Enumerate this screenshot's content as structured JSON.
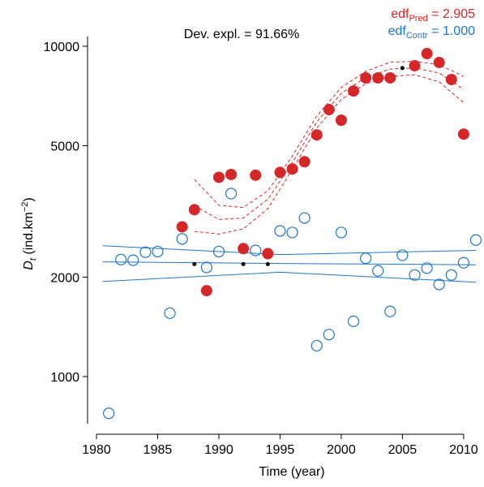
{
  "chart_data": {
    "type": "scatter",
    "log_y": true,
    "title": "Dev. expl. = 91.66%",
    "xlabel": "Time (year)",
    "ylabel": [
      "D",
      "t",
      " (ind.km",
      "−2",
      ")"
    ],
    "edf": [
      {
        "parts": [
          "edf",
          "Pred",
          " = 2.905"
        ],
        "color": "#d62728"
      },
      {
        "parts": [
          "edf",
          "Contr",
          " = 1.000"
        ],
        "color": "#1f77c4"
      }
    ],
    "xlim": [
      1980,
      2011.2
    ],
    "ylim": [
      720,
      10700
    ],
    "xticks": [
      1980,
      1985,
      1990,
      1995,
      2000,
      2005,
      2010
    ],
    "yticks": [
      1000,
      2000,
      5000,
      10000
    ],
    "series": [
      {
        "style": "line",
        "color": "#1f77c4",
        "x": [
          1980.5,
          1995,
          2011
        ],
        "values": [
          2225,
          2200,
          2180
        ]
      },
      {
        "style": "line",
        "color": "#1f77c4",
        "x": [
          1980.5,
          1995,
          2011
        ],
        "values": [
          2490,
          2340,
          2410
        ]
      },
      {
        "style": "line",
        "color": "#1f77c4",
        "x": [
          1980.5,
          1995,
          2011
        ],
        "values": [
          1940,
          2070,
          1930
        ]
      },
      {
        "style": "dashed",
        "color": "#d62728",
        "x": [
          1988,
          1990,
          1992,
          1994,
          1996,
          1998,
          2000,
          2002,
          2004,
          2006,
          2008,
          2010
        ],
        "values": [
          3290,
          2990,
          3020,
          3440,
          4440,
          5900,
          7200,
          8050,
          8530,
          8590,
          8300,
          7400
        ]
      },
      {
        "style": "dashed",
        "color": "#d62728",
        "x": [
          1988,
          1990,
          1992,
          1994,
          1996,
          1998,
          2000,
          2002,
          2004,
          2006,
          2008,
          2010
        ],
        "values": [
          3950,
          3300,
          3250,
          3650,
          4650,
          6150,
          7500,
          8400,
          8950,
          9000,
          8800,
          8100
        ]
      },
      {
        "style": "dashed",
        "color": "#d62728",
        "x": [
          1988,
          1990,
          1992,
          1994,
          1996,
          1998,
          2000,
          2002,
          2004,
          2006,
          2008,
          2010
        ],
        "values": [
          2750,
          2700,
          2800,
          3220,
          4240,
          5650,
          6900,
          7700,
          8100,
          8200,
          7800,
          6750
        ]
      },
      {
        "style": "open",
        "color": "#1f77c4",
        "x": [
          1981,
          1982,
          1983,
          1984,
          1985,
          1986,
          1987,
          1989,
          1990,
          1991,
          1993,
          1995,
          1996,
          1997,
          1998,
          1999,
          2000,
          2001,
          2002,
          2003,
          2004,
          2005,
          2006,
          2007,
          2008,
          2009,
          2010,
          2011
        ],
        "values": [
          774,
          2260,
          2250,
          2380,
          2390,
          1556,
          2610,
          2140,
          2390,
          3580,
          2410,
          2760,
          2730,
          3020,
          1240,
          1340,
          2730,
          1470,
          2280,
          2090,
          1575,
          2330,
          2030,
          2130,
          1900,
          2030,
          2210,
          2590
        ]
      },
      {
        "style": "filled",
        "color": "#d62728",
        "x": [
          1987,
          1988,
          1989,
          1990,
          1991,
          1992,
          1993,
          1994,
          1995,
          1996,
          1997,
          1998,
          1999,
          2000,
          2001,
          2002,
          2003,
          2004,
          2006,
          2007,
          2008,
          2009,
          2010
        ],
        "values": [
          2840,
          3200,
          1820,
          4010,
          4090,
          2440,
          4070,
          2355,
          4150,
          4250,
          4470,
          5390,
          6430,
          5970,
          7320,
          8020,
          8020,
          8020,
          8730,
          9500,
          8930,
          7930,
          5420
        ]
      },
      {
        "style": "dot",
        "color": "#000000",
        "x": [
          1988,
          1992,
          1994,
          2005
        ],
        "values": [
          2190,
          2190,
          2190,
          8590
        ]
      }
    ]
  }
}
